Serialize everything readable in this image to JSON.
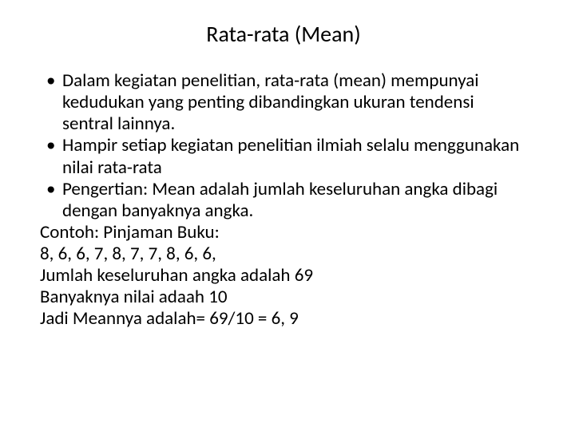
{
  "title": "Rata-rata (Mean)",
  "bullets": [
    "Dalam kegiatan penelitian, rata-rata (mean) mempunyai kedudukan yang penting dibandingkan ukuran tendensi sentral lainnya.",
    "Hampir setiap kegiatan penelitian ilmiah selalu menggunakan nilai rata-rata",
    "Pengertian: Mean adalah jumlah keseluruhan angka dibagi dengan banyaknya angka."
  ],
  "lines": [
    "Contoh: Pinjaman Buku:",
    "8, 6, 6, 7, 8, 7, 7, 8, 6, 6,",
    "Jumlah keseluruhan angka adalah 69",
    "Banyaknya nilai adaah 10",
    "Jadi Meannya adalah= 69/10 = 6, 9"
  ],
  "bullet_char": "•",
  "colors": {
    "background": "#ffffff",
    "text": "#000000"
  },
  "typography": {
    "title_fontsize": 28,
    "body_fontsize": 23,
    "font_family": "Calibri"
  }
}
